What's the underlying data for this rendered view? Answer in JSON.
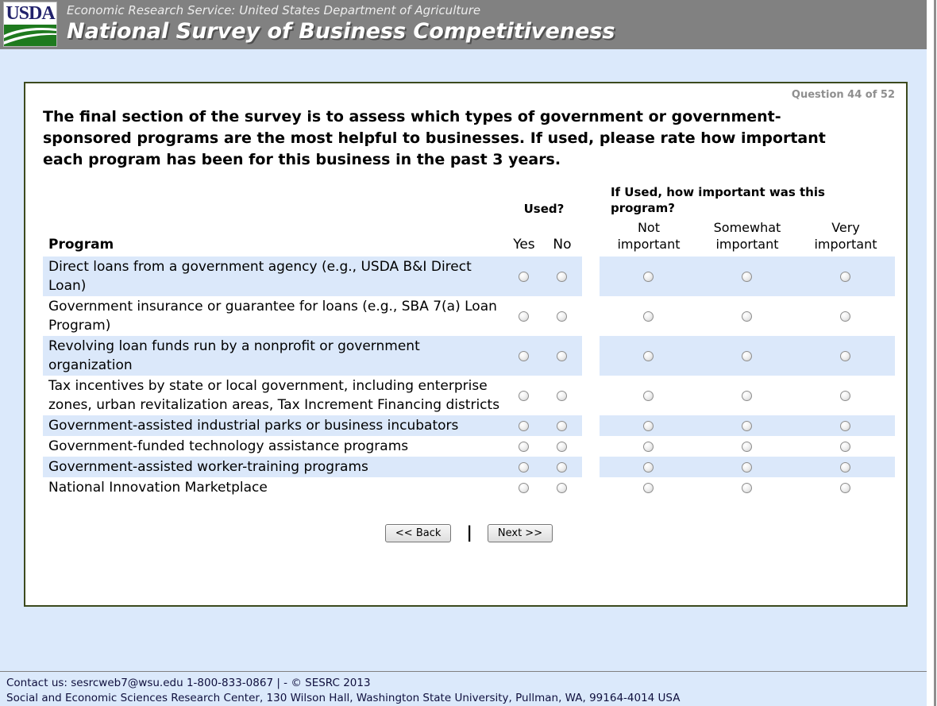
{
  "header": {
    "logo_text": "USDA",
    "agency_line": "Economic Research Service: United States Department of Agriculture",
    "title": "National Survey of Business Competitiveness"
  },
  "survey": {
    "question_counter": "Question 44 of 52",
    "question_text": "The final section of the survey is to assess which types of government or government-sponsored programs are the most helpful to businesses. If used, please rate how important each program has been for this business in the past 3 years."
  },
  "table": {
    "program_header": "Program",
    "used_header": "Used?",
    "importance_header": "If Used, how important was this program?",
    "yes_label": "Yes",
    "no_label": "No",
    "importance_columns": [
      "Not important",
      "Somewhat important",
      "Very important"
    ],
    "rows": [
      {
        "program": "Direct loans from a government agency (e.g., USDA B&I Direct Loan)"
      },
      {
        "program": "Government insurance or guarantee for loans (e.g., SBA 7(a) Loan Program)"
      },
      {
        "program": "Revolving loan funds run by a nonprofit or government organization"
      },
      {
        "program": "Tax incentives by state or local government, including enterprise zones, urban revitalization areas, Tax Increment Financing districts"
      },
      {
        "program": "Government-assisted industrial parks or business incubators"
      },
      {
        "program": "Government-funded technology assistance programs"
      },
      {
        "program": "Government-assisted worker-training programs"
      },
      {
        "program": "National Innovation Marketplace"
      }
    ]
  },
  "buttons": {
    "back_label": "<< Back",
    "separator": "|",
    "next_label": "Next >>"
  },
  "footer": {
    "line1": "Contact us: sesrcweb7@wsu.edu 1-800-833-0867 | - © SESRC 2013",
    "line2": "Social and Economic Sciences Research Center, 130 Wilson Hall, Washington State University, Pullman, WA, 99164-4014 USA"
  },
  "colors": {
    "header-bg": "#818181",
    "page-bg": "#dbe9fb",
    "row-highlight": "#dbe8fa",
    "box-border": "#3c4a1e",
    "logo-green": "#1e7a1e",
    "logo-navy": "#21216b",
    "counter-gray": "#8f8f8f",
    "footer-text": "#0f0f3d"
  }
}
